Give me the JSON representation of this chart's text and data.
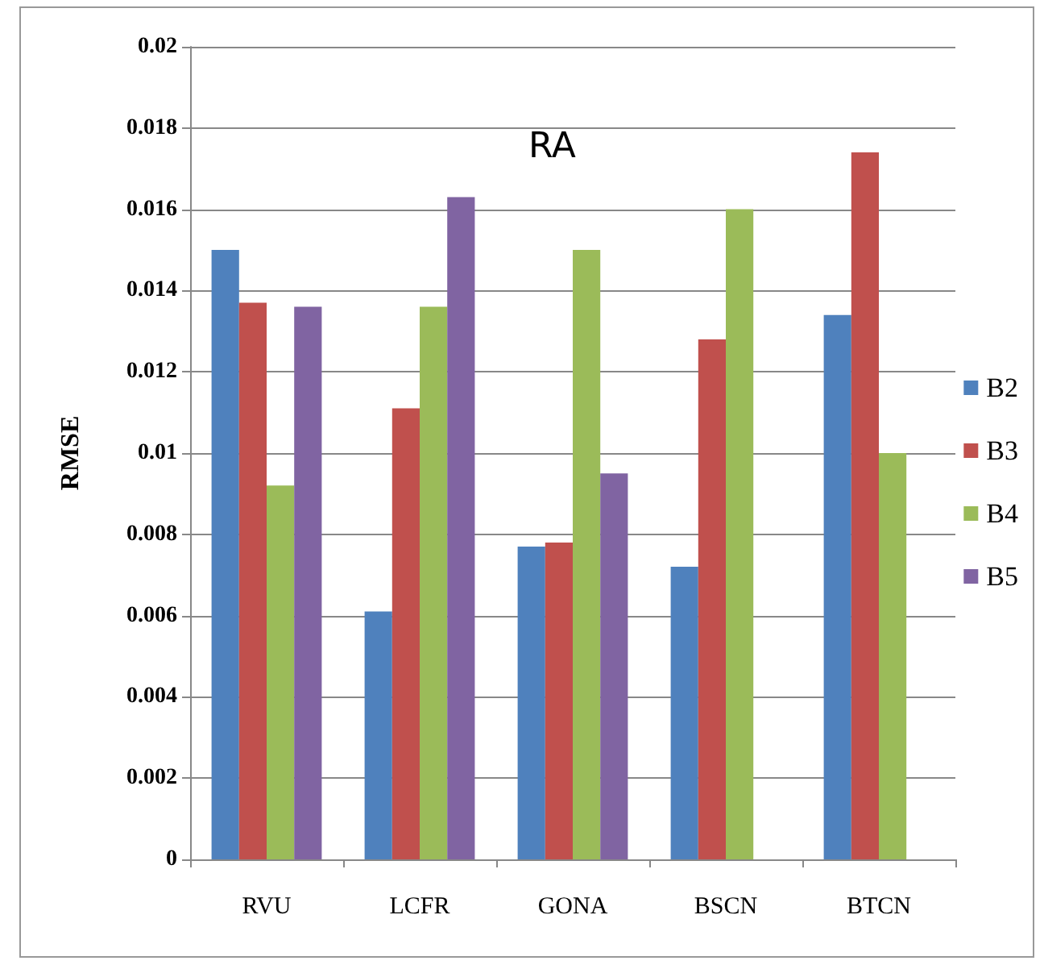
{
  "chart_data": {
    "type": "bar",
    "title": "RA",
    "ylabel": "RMSE",
    "categories": [
      "RVU",
      "LCFR",
      "GONA",
      "BSCN",
      "BTCN"
    ],
    "series": [
      {
        "name": "B2",
        "color": "#4f81bd",
        "values": [
          0.015,
          0.0061,
          0.0077,
          0.0072,
          0.0134
        ]
      },
      {
        "name": "B3",
        "color": "#c0504d",
        "values": [
          0.0137,
          0.0111,
          0.0078,
          0.0128,
          0.0174
        ]
      },
      {
        "name": "B4",
        "color": "#9bbb59",
        "values": [
          0.0092,
          0.0136,
          0.015,
          0.016,
          0.01
        ]
      },
      {
        "name": "B5",
        "color": "#8064a2",
        "values": [
          0.0136,
          0.0163,
          0.0095,
          null,
          null
        ]
      }
    ],
    "ylim": [
      0,
      0.02
    ],
    "yticks": [
      0,
      0.002,
      0.004,
      0.006,
      0.008,
      0.01,
      0.012,
      0.014,
      0.016,
      0.018,
      0.02
    ],
    "grid": "y",
    "legend": "right"
  }
}
